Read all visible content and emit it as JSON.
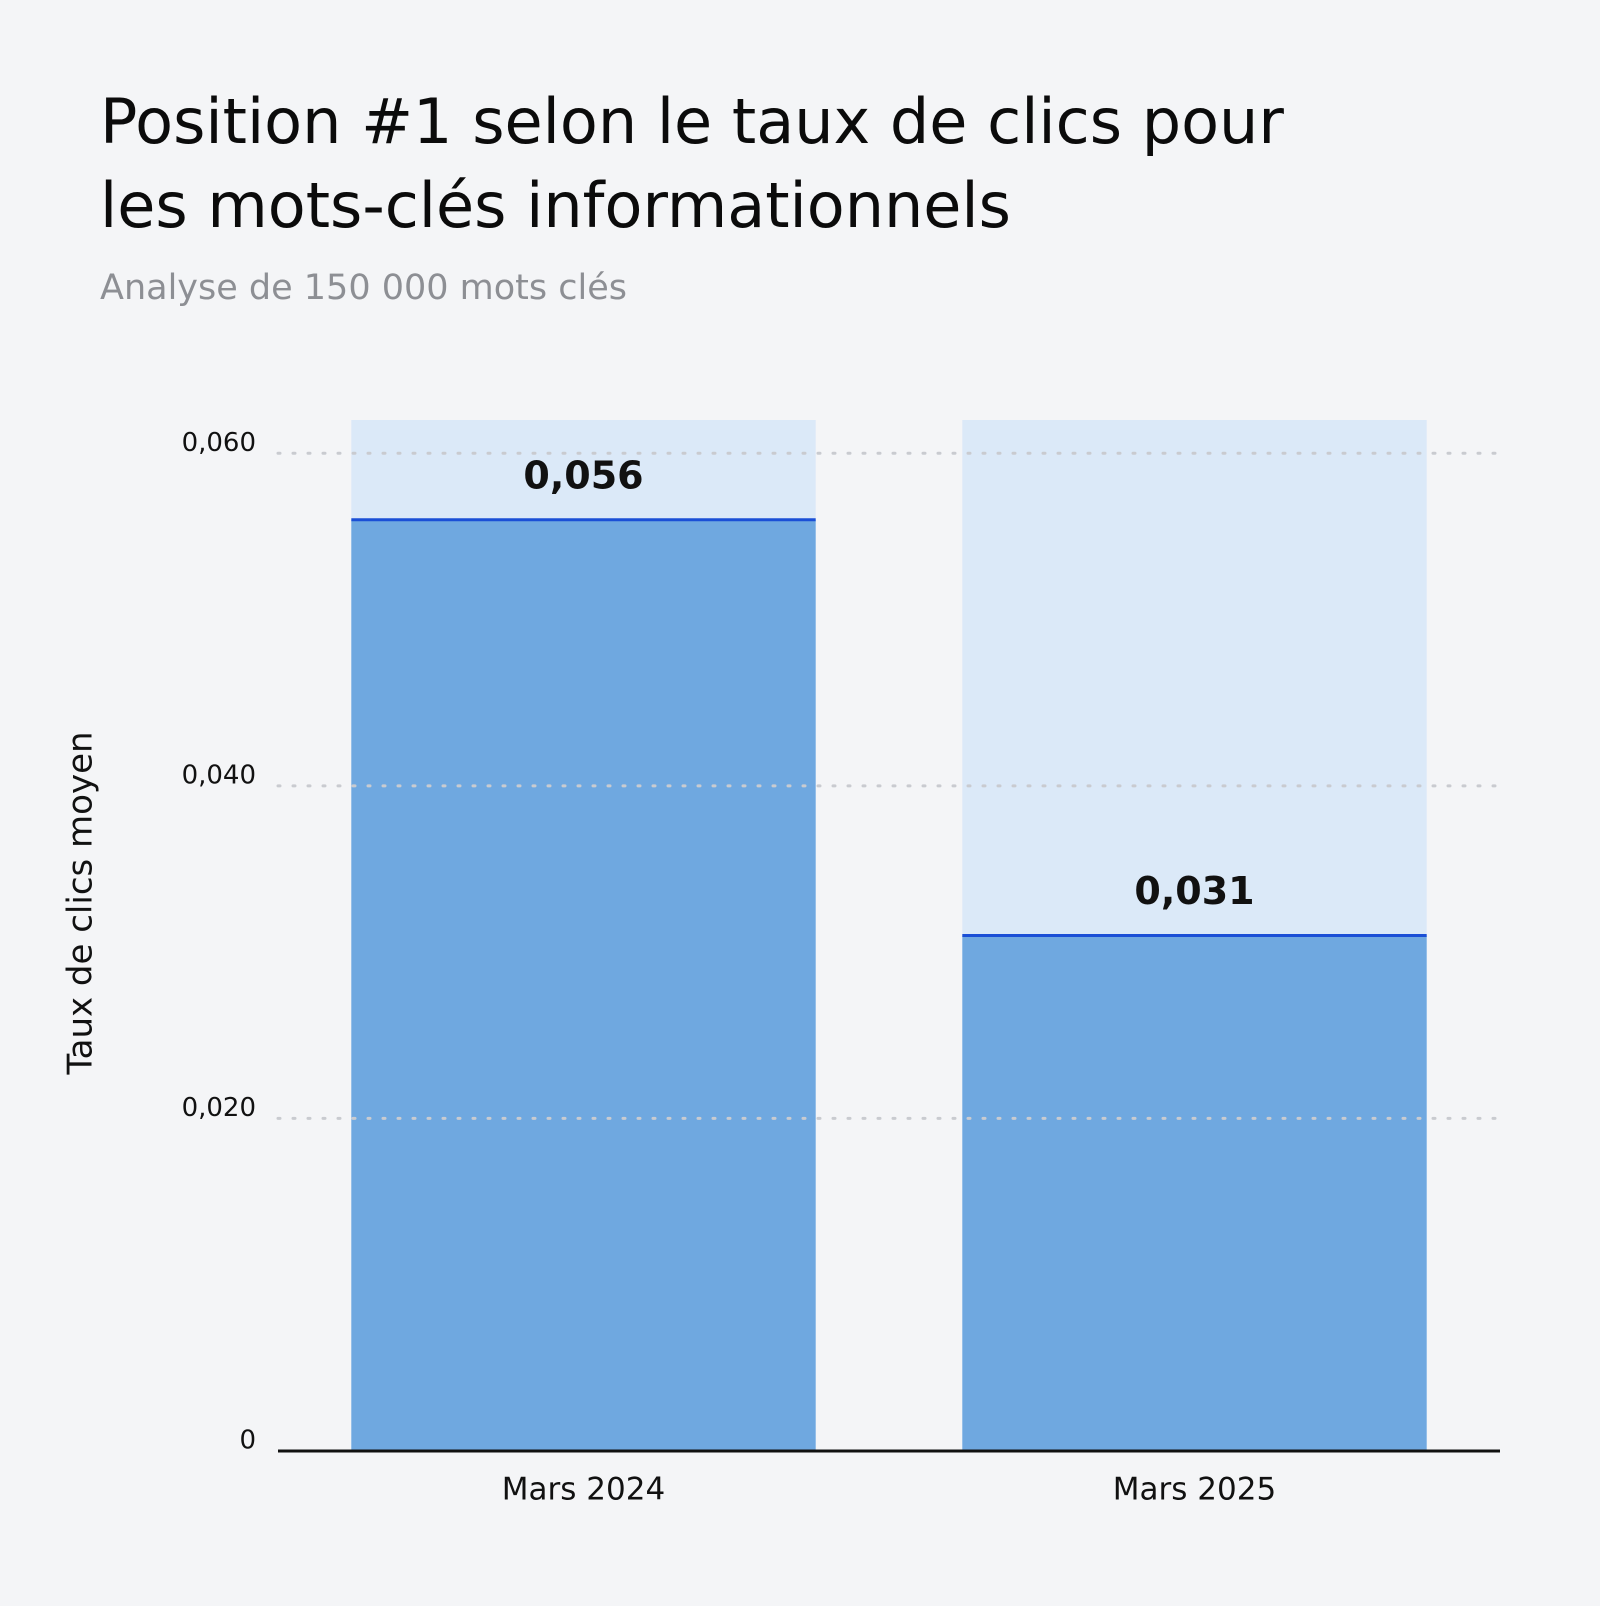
{
  "chart_data": {
    "type": "bar",
    "title": "Position #1 selon le taux de clics pour les mots-clés informationnels",
    "subtitle": "Analyse de 150 000 mots clés",
    "y_label": "Taux de clics moyen",
    "categories": [
      "Mars 2024",
      "Mars 2025"
    ],
    "values": [
      0.056,
      0.031
    ],
    "value_labels": [
      "0,056",
      "0,031"
    ],
    "color": "#6fa8e0",
    "ylim": [
      0,
      0.062
    ],
    "yticks": [
      0,
      {
        "value": 0.02,
        "label": "0,020"
      },
      {
        "value": 0.04,
        "label": "0,040"
      },
      {
        "value": 0.06,
        "label": "0,060"
      }
    ],
    "grid": true
  }
}
